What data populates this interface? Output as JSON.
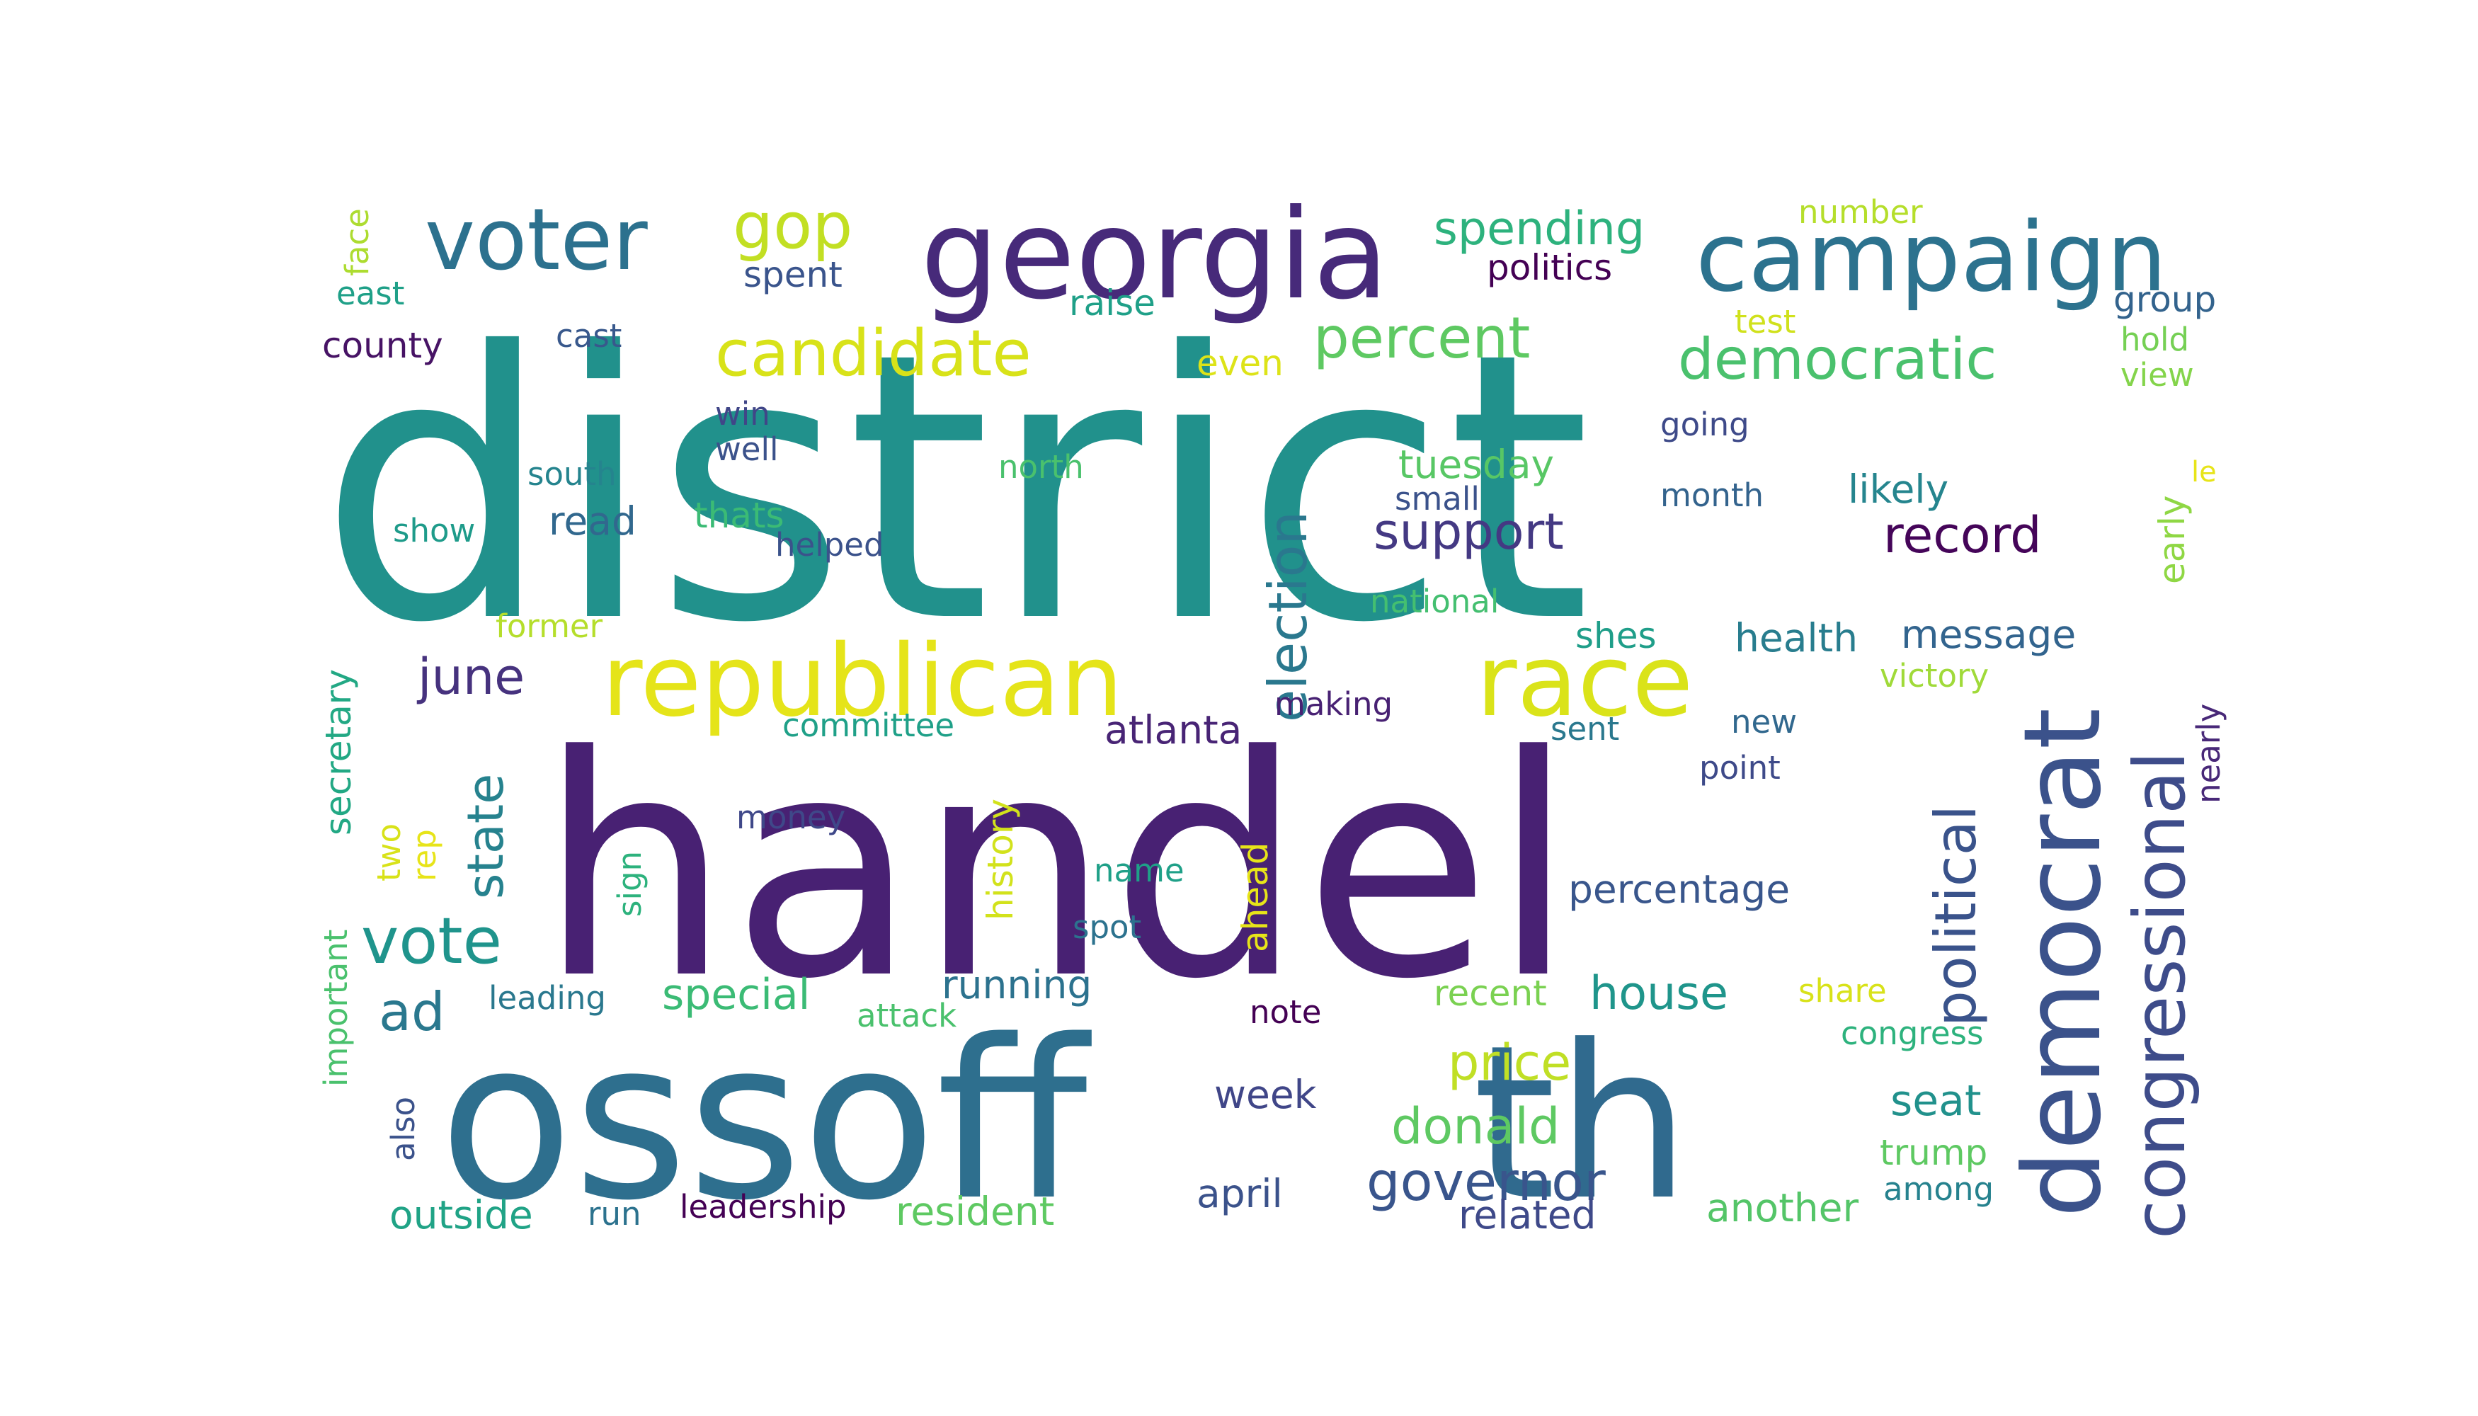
{
  "words": [
    {
      "text": "district",
      "color": "#21918c"
    },
    {
      "text": "handel",
      "color": "#482173"
    },
    {
      "text": "ossoff",
      "color": "#2e6f8e"
    },
    {
      "text": "th",
      "color": "#306a8e"
    },
    {
      "text": "georgia",
      "color": "#472a7a"
    },
    {
      "text": "republican",
      "color": "#e5e419"
    },
    {
      "text": "campaign",
      "color": "#2c728e"
    },
    {
      "text": "voter",
      "color": "#2c718e"
    },
    {
      "text": "race",
      "color": "#dae319"
    },
    {
      "text": "democrat",
      "color": "#3b528b"
    },
    {
      "text": "congressional",
      "color": "#3e4c8a"
    },
    {
      "text": "candidate",
      "color": "#d8e219"
    },
    {
      "text": "gop",
      "color": "#c2df23"
    },
    {
      "text": "percent",
      "color": "#5ec962"
    },
    {
      "text": "democratic",
      "color": "#4ac16d"
    },
    {
      "text": "vote",
      "color": "#1f948c"
    },
    {
      "text": "election",
      "color": "#2a788e"
    },
    {
      "text": "political",
      "color": "#3a538b"
    },
    {
      "text": "governor",
      "color": "#39558c"
    },
    {
      "text": "support",
      "color": "#443983"
    },
    {
      "text": "spending",
      "color": "#2db27d"
    },
    {
      "text": "state",
      "color": "#26828e"
    },
    {
      "text": "record",
      "color": "#450559"
    },
    {
      "text": "donald",
      "color": "#5ec962"
    },
    {
      "text": "price",
      "color": "#c0df25"
    },
    {
      "text": "ad",
      "color": "#2a788e"
    },
    {
      "text": "june",
      "color": "#46327e"
    },
    {
      "text": "house",
      "color": "#1f958b"
    },
    {
      "text": "percentage",
      "color": "#39568c"
    },
    {
      "text": "seat",
      "color": "#21918c"
    },
    {
      "text": "special",
      "color": "#3bbb75"
    },
    {
      "text": "week",
      "color": "#404688"
    },
    {
      "text": "atlanta",
      "color": "#482475"
    },
    {
      "text": "likely",
      "color": "#25858e"
    },
    {
      "text": "health",
      "color": "#287d8e"
    },
    {
      "text": "message",
      "color": "#32648e"
    },
    {
      "text": "tuesday",
      "color": "#58c765"
    },
    {
      "text": "politics",
      "color": "#440154"
    },
    {
      "text": "early",
      "color": "#8fd744"
    },
    {
      "text": "raise",
      "color": "#1fa088"
    },
    {
      "text": "spent",
      "color": "#3a548c"
    },
    {
      "text": "outside",
      "color": "#20a386"
    },
    {
      "text": "april",
      "color": "#3b528b"
    },
    {
      "text": "resident",
      "color": "#5ec962"
    },
    {
      "text": "related",
      "color": "#3e4989"
    },
    {
      "text": "another",
      "color": "#54c568"
    },
    {
      "text": "running",
      "color": "#2c728e"
    },
    {
      "text": "read",
      "color": "#31688e"
    },
    {
      "text": "thats",
      "color": "#3bbb75"
    },
    {
      "text": "group",
      "color": "#33638d"
    },
    {
      "text": "county",
      "color": "#471365"
    },
    {
      "text": "history",
      "color": "#d2e21b"
    },
    {
      "text": "ahead",
      "color": "#e7e419"
    },
    {
      "text": "secretary",
      "color": "#22a884"
    },
    {
      "text": "trump",
      "color": "#5ec962"
    },
    {
      "text": "even",
      "color": "#dde318"
    },
    {
      "text": "shes",
      "color": "#1f9e89"
    },
    {
      "text": "month",
      "color": "#33638d"
    },
    {
      "text": "among",
      "color": "#26828e"
    },
    {
      "text": "leading",
      "color": "#2a788e"
    },
    {
      "text": "east",
      "color": "#1fa088"
    },
    {
      "text": "money",
      "color": "#3f4889"
    },
    {
      "text": "making",
      "color": "#482173"
    },
    {
      "text": "win",
      "color": "#404688"
    },
    {
      "text": "south",
      "color": "#25848e"
    },
    {
      "text": "point",
      "color": "#3e4a89"
    },
    {
      "text": "victory",
      "color": "#a0da39"
    },
    {
      "text": "national",
      "color": "#44bf70"
    },
    {
      "text": "leadership",
      "color": "#440154"
    },
    {
      "text": "hold",
      "color": "#75d054"
    },
    {
      "text": "view",
      "color": "#84d44b"
    },
    {
      "text": "new",
      "color": "#31688e"
    },
    {
      "text": "north",
      "color": "#4ac16d"
    },
    {
      "text": "recent",
      "color": "#7ad151"
    },
    {
      "text": "name",
      "color": "#1fa088"
    },
    {
      "text": "spot",
      "color": "#2c728e"
    },
    {
      "text": "going",
      "color": "#3e4a89"
    },
    {
      "text": "show",
      "color": "#1e9b8a"
    },
    {
      "text": "well",
      "color": "#3b528b"
    },
    {
      "text": "cast",
      "color": "#38588c"
    },
    {
      "text": "committee",
      "color": "#1fa088"
    },
    {
      "text": "helped",
      "color": "#3b528b"
    },
    {
      "text": "run",
      "color": "#2c728e"
    },
    {
      "text": "share",
      "color": "#d8e219"
    },
    {
      "text": "note",
      "color": "#440154"
    },
    {
      "text": "congress",
      "color": "#2db27d"
    },
    {
      "text": "sent",
      "color": "#2a788e"
    },
    {
      "text": "small",
      "color": "#3b528b"
    },
    {
      "text": "number",
      "color": "#b5de2b"
    },
    {
      "text": "attack",
      "color": "#4ac16d"
    },
    {
      "text": "former",
      "color": "#b5de2b"
    },
    {
      "text": "nearly",
      "color": "#482878"
    },
    {
      "text": "test",
      "color": "#d0e11c"
    },
    {
      "text": "two",
      "color": "#d8e219"
    },
    {
      "text": "rep",
      "color": "#e7e419"
    },
    {
      "text": "sign",
      "color": "#2db27d"
    },
    {
      "text": "face",
      "color": "#addc30"
    },
    {
      "text": "also",
      "color": "#3b528b"
    },
    {
      "text": "important",
      "color": "#4ac16d"
    },
    {
      "text": "le",
      "color": "#e7e419"
    }
  ]
}
